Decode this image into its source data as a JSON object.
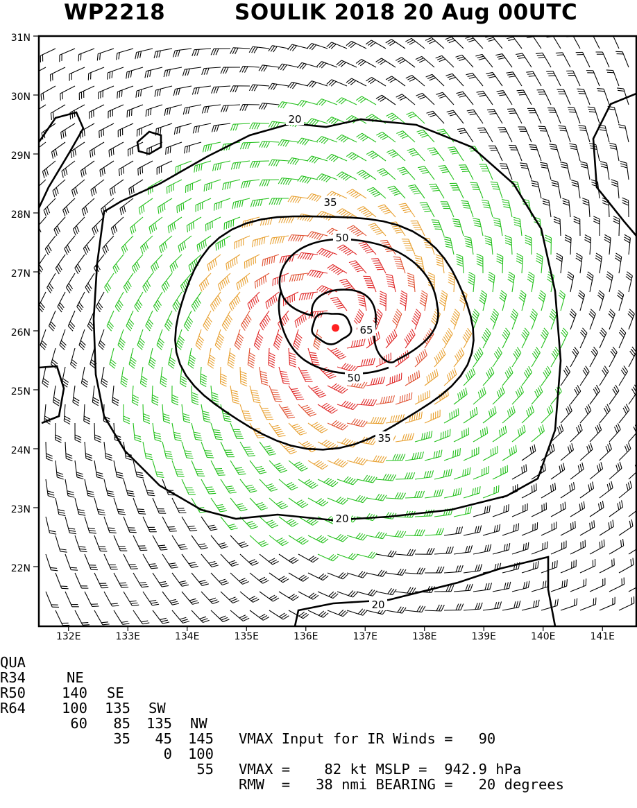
{
  "header": {
    "storm_id": "WP2218",
    "title": "SOULIK 2018 20 Aug 00UTC"
  },
  "map": {
    "lat_labels": [
      "31N",
      "30N",
      "29N",
      "28N",
      "27N",
      "26N",
      "25N",
      "24N",
      "23N",
      "22N"
    ],
    "lon_labels": [
      "132E",
      "133E",
      "134E",
      "135E",
      "136E",
      "137E",
      "138E",
      "139E",
      "140E",
      "141E"
    ],
    "contour_labels": [
      "20",
      "35",
      "50",
      "65",
      "50",
      "35",
      "20",
      "20"
    ],
    "storm_center": {
      "lat": 26.05,
      "lon": 136.5
    },
    "colors": {
      "barb_below_34": "#000000",
      "barb_34_49": "#22c01a",
      "barb_50_63": "#e8a030",
      "barb_64_plus": "#e05030",
      "barb_core": "#e02828",
      "center_marker": "#ff2020",
      "contour": "#000000"
    }
  },
  "table": {
    "headers": [
      "QUA",
      "NE",
      "SE",
      "SW",
      "NW"
    ],
    "rows": [
      {
        "label": "R34",
        "ne": "140",
        "se": "135",
        "sw": "135",
        "nw": "145"
      },
      {
        "label": "R50",
        "ne": "100",
        "se": "85",
        "sw": "45",
        "nw": "100"
      },
      {
        "label": "R64",
        "ne": "60",
        "se": "35",
        "sw": "0",
        "nw": "55"
      }
    ],
    "info_lines": [
      "VMAX Input for IR Winds =   90",
      "",
      "VMAX =    82 kt MSLP =  942.9 hPa",
      "RMW  =   38 nmi BEARING =   20 degrees"
    ]
  }
}
